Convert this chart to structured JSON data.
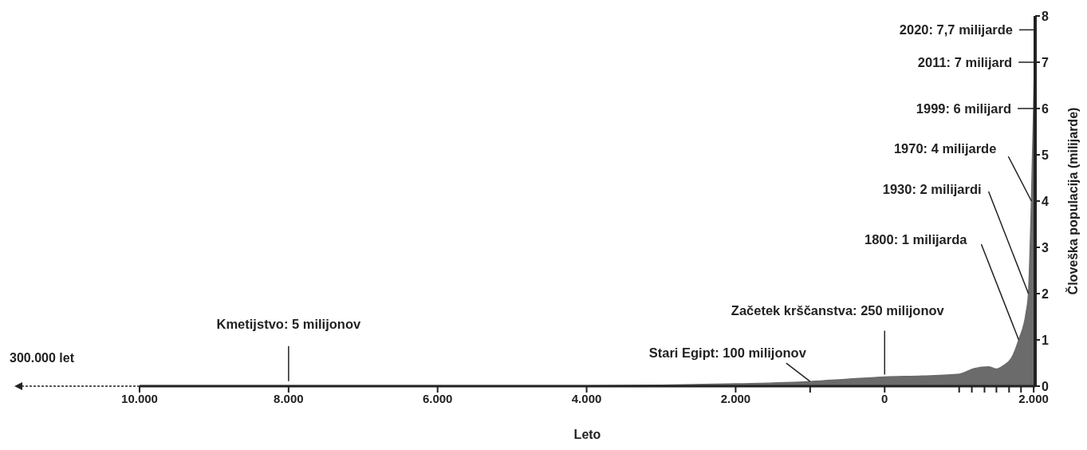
{
  "chart_data": {
    "type": "area",
    "xlabel": "Leto",
    "ylabel": "Človeška populacija (milijarde)",
    "x": [
      -10000,
      -8000,
      -6000,
      -4000,
      -3000,
      -2000,
      -1000,
      -500,
      0,
      500,
      1000,
      1200,
      1400,
      1500,
      1600,
      1700,
      1800,
      1900,
      1930,
      1970,
      1999,
      2011,
      2020
    ],
    "values": [
      0.01,
      0.01,
      0.01,
      0.01,
      0.02,
      0.05,
      0.1,
      0.15,
      0.2,
      0.22,
      0.26,
      0.38,
      0.42,
      0.37,
      0.45,
      0.6,
      1,
      1.6,
      2,
      4,
      6,
      7,
      7.7
    ],
    "color": "#6b6b6b",
    "xlim": [
      -10000,
      2020
    ],
    "xticks": [
      {
        "value": -10000,
        "label": "10.000"
      },
      {
        "value": -8000,
        "label": "8.000"
      },
      {
        "value": -6000,
        "label": "6.000"
      },
      {
        "value": -4000,
        "label": "4.000"
      },
      {
        "value": -2000,
        "label": "2.000"
      },
      {
        "value": -1000,
        "label": null
      },
      {
        "value": 0,
        "label": "0"
      },
      {
        "value": 1000,
        "label": null
      },
      {
        "value": 1170,
        "label": null
      },
      {
        "value": 1340,
        "label": null
      },
      {
        "value": 1500,
        "label": null
      },
      {
        "value": 1670,
        "label": null
      },
      {
        "value": 1830,
        "label": null
      },
      {
        "value": 2000,
        "label": "2.000"
      }
    ],
    "ylim": [
      0,
      8
    ],
    "yticks": [
      0,
      1,
      2,
      3,
      4,
      5,
      6,
      7,
      8
    ],
    "annotations": [
      {
        "text": "Kmetijstvo: 5 milijonov",
        "x": -8000,
        "y": 0.005
      },
      {
        "text": "Stari Egipt: 100 milijonov",
        "x": -1000,
        "y": 0.1
      },
      {
        "text": "Začetek krščanstva: 250 milijonov",
        "x": 0,
        "y": 0.25
      },
      {
        "text": "1800: 1 milijarda",
        "x": 1800,
        "y": 1
      },
      {
        "text": "1930: 2 milijardi",
        "x": 1930,
        "y": 2
      },
      {
        "text": "1970: 4 milijarde",
        "x": 1970,
        "y": 4
      },
      {
        "text": "1999: 6 milijard",
        "x": 1999,
        "y": 6
      },
      {
        "text": "2011: 7 milijard",
        "x": 2011,
        "y": 7
      },
      {
        "text": "2020: 7,7 milijarde",
        "x": 2020,
        "y": 7.7
      },
      "300.000 let"
    ]
  }
}
